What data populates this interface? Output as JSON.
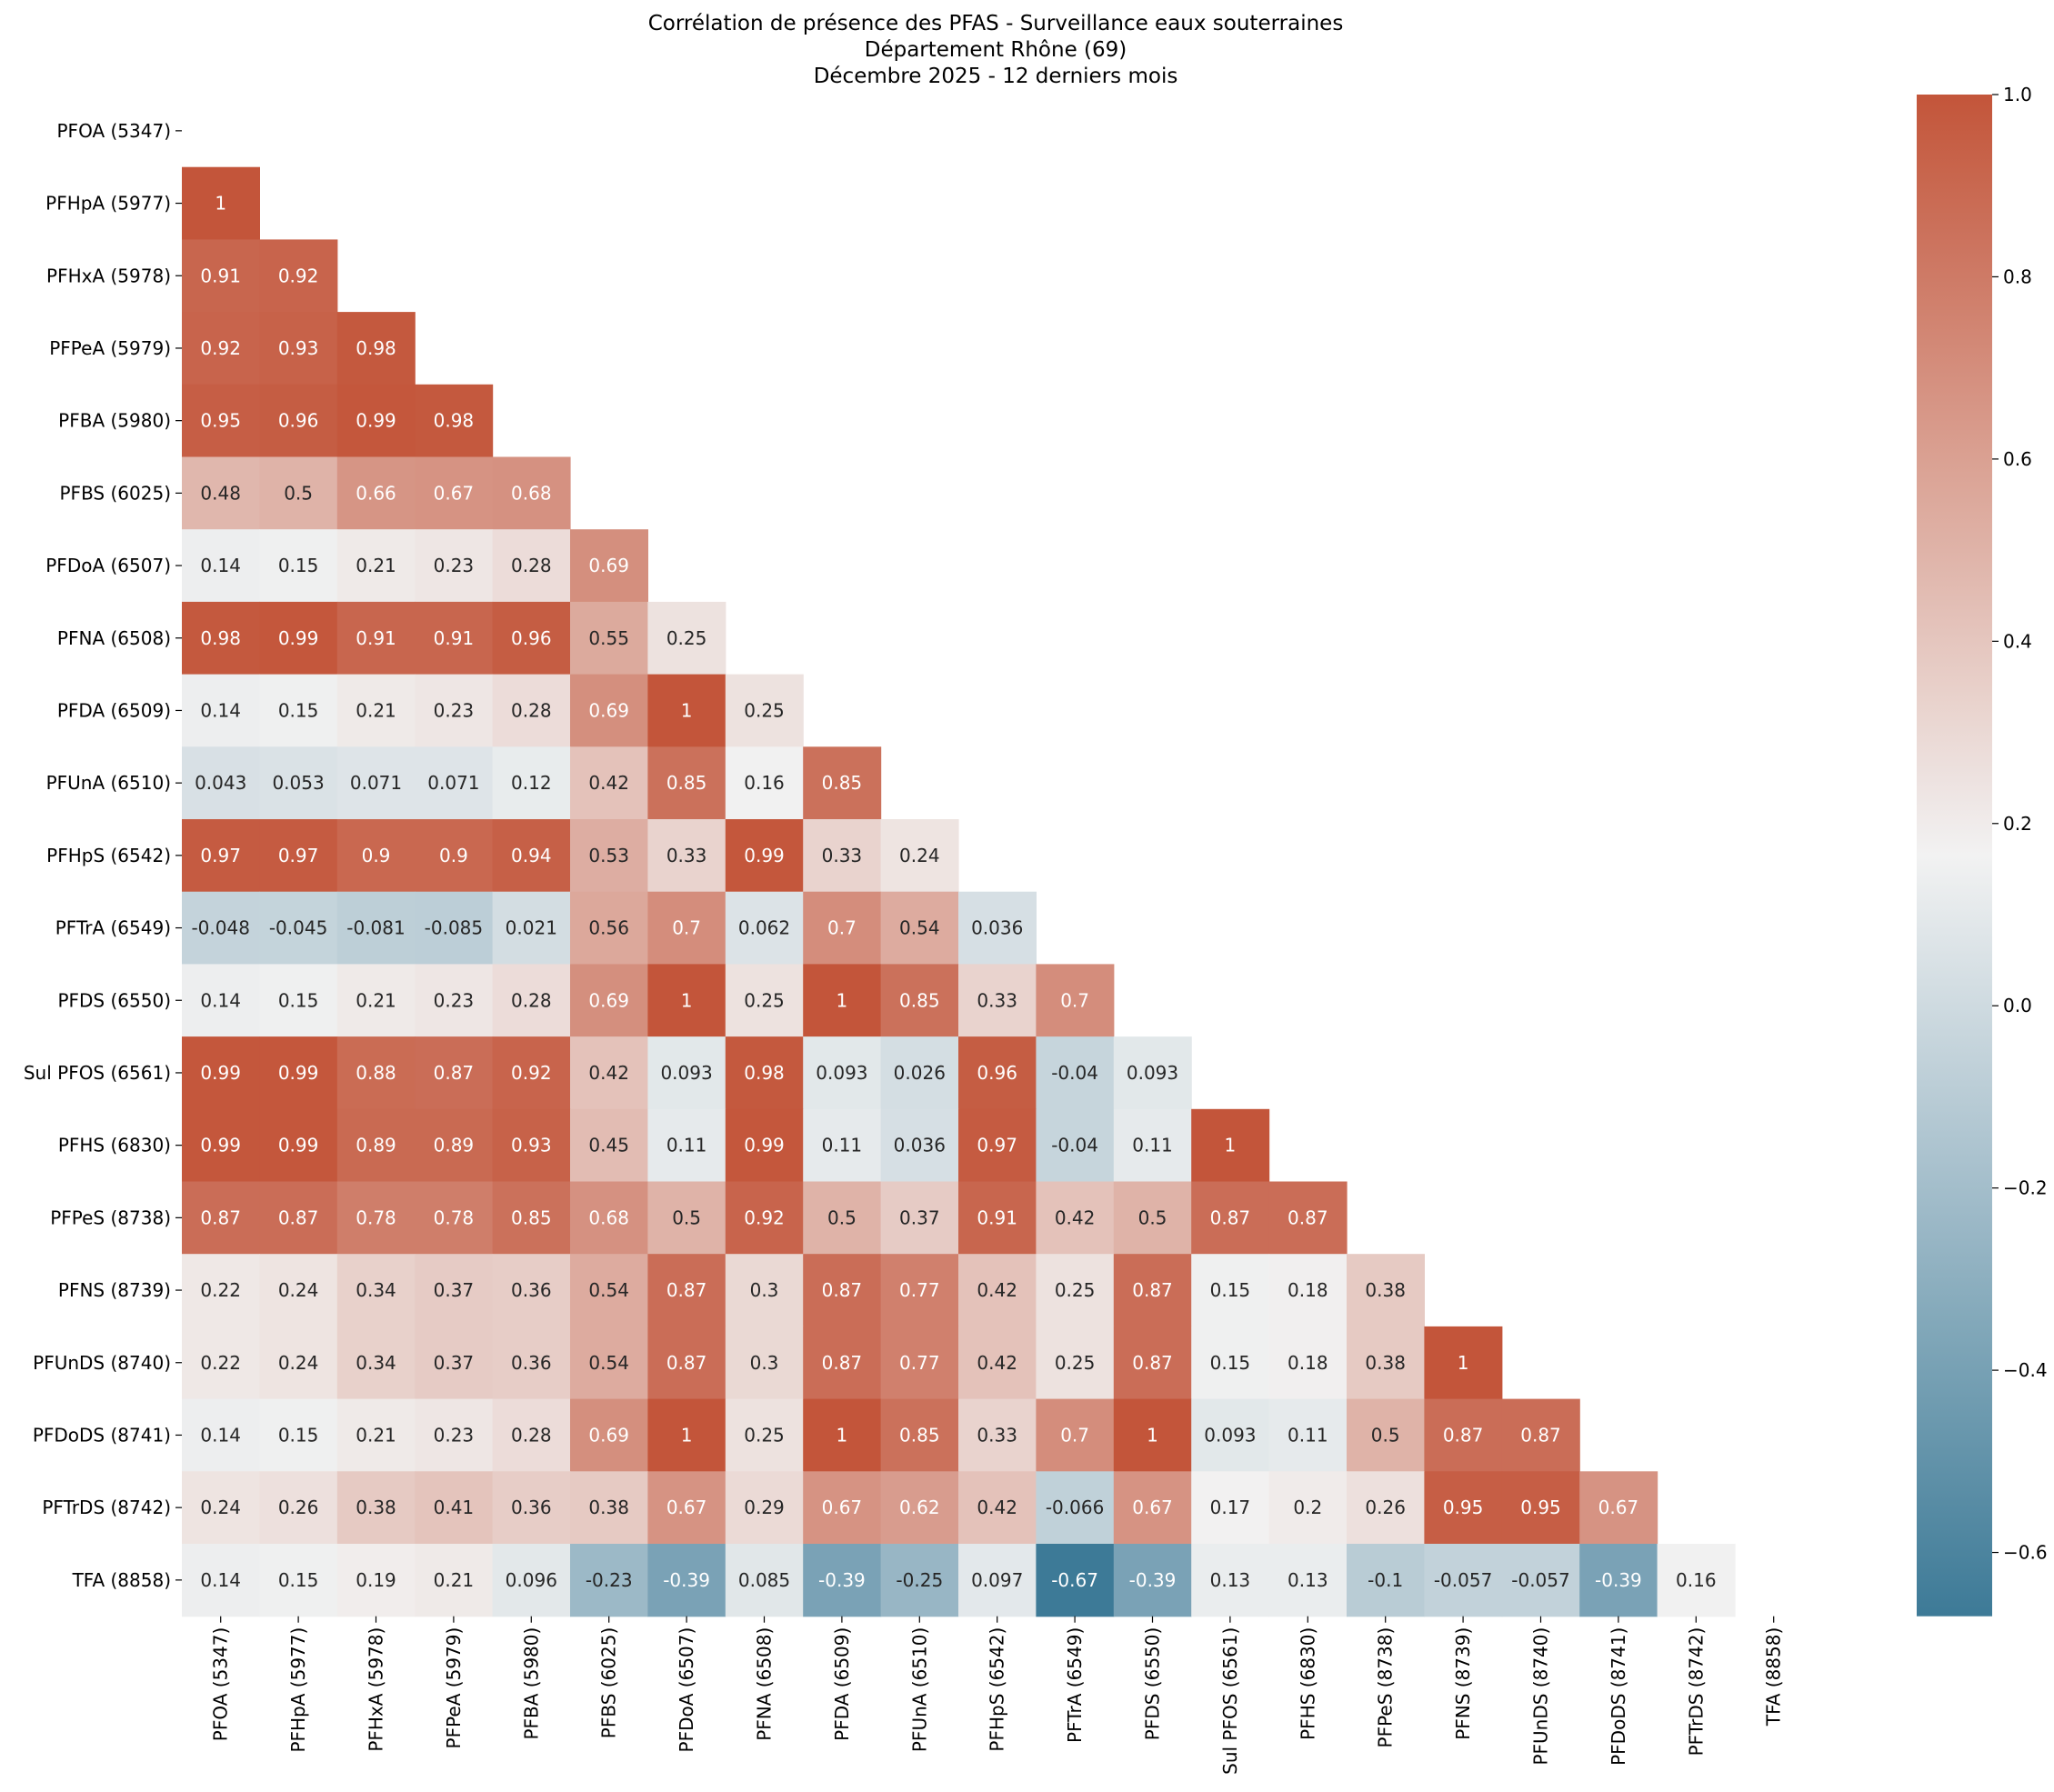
{
  "chart_data": {
    "type": "heatmap",
    "title_lines": [
      "Corrélation de présence des PFAS - Surveillance eaux souterraines",
      "Département Rhône (69)",
      "Décembre 2025 - 12 derniers mois"
    ],
    "labels": [
      "PFOA (5347)",
      "PFHpA (5977)",
      "PFHxA (5978)",
      "PFPeA (5979)",
      "PFBA (5980)",
      "PFBS (6025)",
      "PFDoA (6507)",
      "PFNA (6508)",
      "PFDA (6509)",
      "PFUnA (6510)",
      "PFHpS (6542)",
      "PFTrA (6549)",
      "PFDS (6550)",
      "Sul PFOS (6561)",
      "PFHS (6830)",
      "PFPeS (8738)",
      "PFNS (8739)",
      "PFUnDS (8740)",
      "PFDoDS (8741)",
      "PFTrDS (8742)",
      "TFA (8858)"
    ],
    "mask": "upper-triangle-including-diagonal",
    "lower_triangle": [
      [],
      [
        1
      ],
      [
        0.91,
        0.92
      ],
      [
        0.92,
        0.93,
        0.98
      ],
      [
        0.95,
        0.96,
        0.99,
        0.98
      ],
      [
        0.48,
        0.5,
        0.66,
        0.67,
        0.68
      ],
      [
        0.14,
        0.15,
        0.21,
        0.23,
        0.28,
        0.69
      ],
      [
        0.98,
        0.99,
        0.91,
        0.91,
        0.96,
        0.55,
        0.25
      ],
      [
        0.14,
        0.15,
        0.21,
        0.23,
        0.28,
        0.69,
        1,
        0.25
      ],
      [
        0.043,
        0.053,
        0.071,
        0.071,
        0.12,
        0.42,
        0.85,
        0.16,
        0.85
      ],
      [
        0.97,
        0.97,
        0.9,
        0.9,
        0.94,
        0.53,
        0.33,
        0.99,
        0.33,
        0.24
      ],
      [
        -0.048,
        -0.045,
        -0.081,
        -0.085,
        0.021,
        0.56,
        0.7,
        0.062,
        0.7,
        0.54,
        0.036
      ],
      [
        0.14,
        0.15,
        0.21,
        0.23,
        0.28,
        0.69,
        1,
        0.25,
        1,
        0.85,
        0.33,
        0.7
      ],
      [
        0.99,
        0.99,
        0.88,
        0.87,
        0.92,
        0.42,
        0.093,
        0.98,
        0.093,
        0.026,
        0.96,
        -0.04,
        0.093
      ],
      [
        0.99,
        0.99,
        0.89,
        0.89,
        0.93,
        0.45,
        0.11,
        0.99,
        0.11,
        0.036,
        0.97,
        -0.04,
        0.11,
        1
      ],
      [
        0.87,
        0.87,
        0.78,
        0.78,
        0.85,
        0.68,
        0.5,
        0.92,
        0.5,
        0.37,
        0.91,
        0.42,
        0.5,
        0.87,
        0.87
      ],
      [
        0.22,
        0.24,
        0.34,
        0.37,
        0.36,
        0.54,
        0.87,
        0.3,
        0.87,
        0.77,
        0.42,
        0.25,
        0.87,
        0.15,
        0.18,
        0.38
      ],
      [
        0.22,
        0.24,
        0.34,
        0.37,
        0.36,
        0.54,
        0.87,
        0.3,
        0.87,
        0.77,
        0.42,
        0.25,
        0.87,
        0.15,
        0.18,
        0.38,
        1
      ],
      [
        0.14,
        0.15,
        0.21,
        0.23,
        0.28,
        0.69,
        1,
        0.25,
        1,
        0.85,
        0.33,
        0.7,
        1,
        0.093,
        0.11,
        0.5,
        0.87,
        0.87
      ],
      [
        0.24,
        0.26,
        0.38,
        0.41,
        0.36,
        0.38,
        0.67,
        0.29,
        0.67,
        0.62,
        0.42,
        -0.066,
        0.67,
        0.17,
        0.2,
        0.26,
        0.95,
        0.95,
        0.67
      ],
      [
        0.14,
        0.15,
        0.19,
        0.21,
        0.096,
        -0.23,
        -0.39,
        0.085,
        -0.39,
        -0.25,
        0.097,
        -0.67,
        -0.39,
        0.13,
        0.13,
        -0.1,
        -0.057,
        -0.057,
        -0.39,
        0.16
      ]
    ],
    "vmin": -0.67,
    "vmax": 1.0,
    "colorbar_ticks": [
      "1.0",
      "0.8",
      "0.6",
      "0.4",
      "0.2",
      "0.0",
      "−0.2",
      "−0.4",
      "−0.6"
    ],
    "colorbar_tick_values": [
      1.0,
      0.8,
      0.6,
      0.4,
      0.2,
      0.0,
      -0.2,
      -0.4,
      -0.6
    ],
    "colors": {
      "low": "#3d7a97",
      "mid": "#f2f2f2",
      "high": "#c3553a"
    },
    "annotated": true,
    "legend": "colorbar-right"
  }
}
